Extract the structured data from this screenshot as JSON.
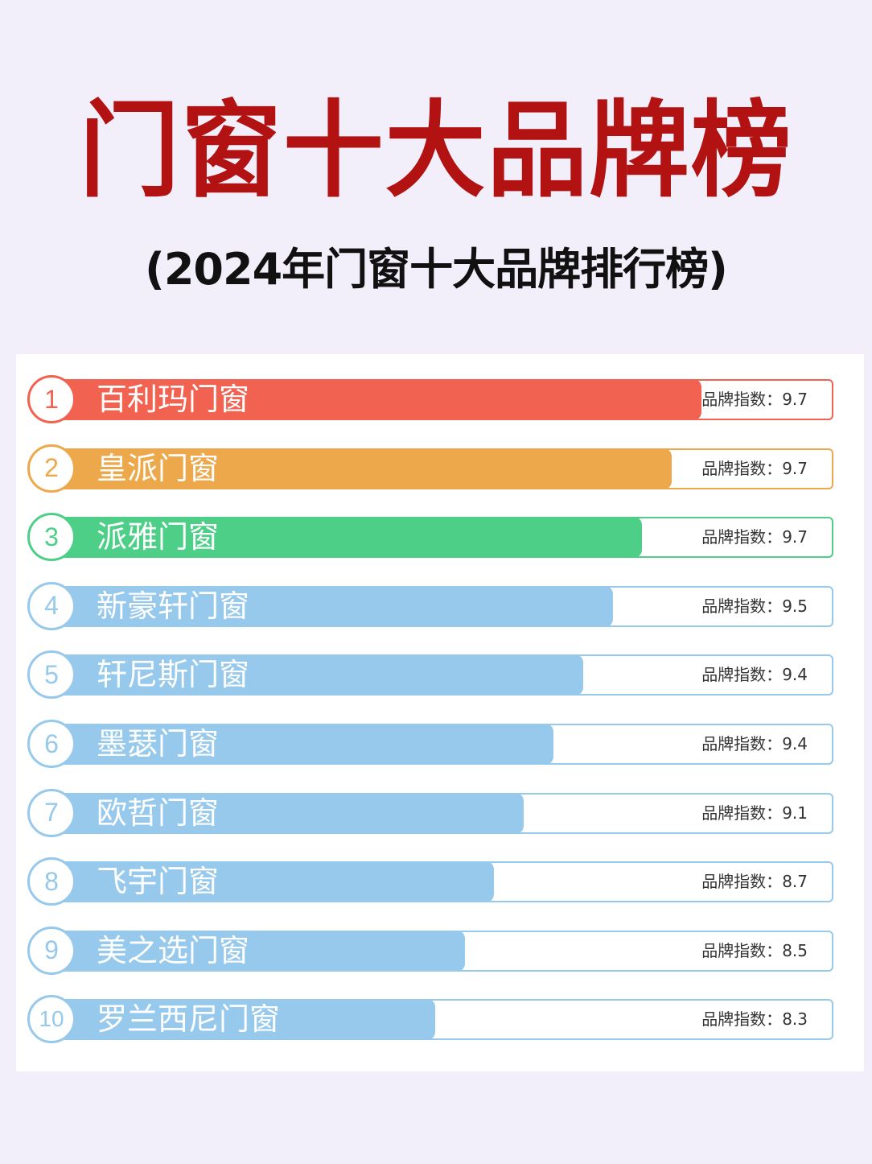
{
  "title": "门窗十大品牌榜",
  "subtitle": "(2024年门窗十大品牌排行榜)",
  "score_label": "品牌指数：",
  "colors": {
    "title": "#b21212",
    "rank1": "#f16250",
    "rank2": "#eea84c",
    "rank3": "#4ecf88",
    "others": "#96c9ec"
  },
  "chart_data": {
    "type": "bar",
    "orientation": "horizontal",
    "title": "门窗十大品牌榜",
    "subtitle": "(2024年门窗十大品牌排行榜)",
    "categories": [
      "百利玛门窗",
      "皇派门窗",
      "派雅门窗",
      "新豪轩门窗",
      "轩尼斯门窗",
      "墨瑟门窗",
      "欧哲门窗",
      "飞宇门窗",
      "美之选门窗",
      "罗兰西尼门窗"
    ],
    "ranks": [
      "1",
      "2",
      "3",
      "4",
      "5",
      "6",
      "7",
      "8",
      "9",
      "10"
    ],
    "values": [
      9.7,
      9.7,
      9.7,
      9.5,
      9.4,
      9.4,
      9.1,
      8.7,
      8.5,
      8.3
    ],
    "value_labels": [
      "9.7",
      "9.7",
      "9.7",
      "9.5",
      "9.4",
      "9.4",
      "9.1",
      "8.7",
      "8.5",
      "8.3"
    ]
  }
}
